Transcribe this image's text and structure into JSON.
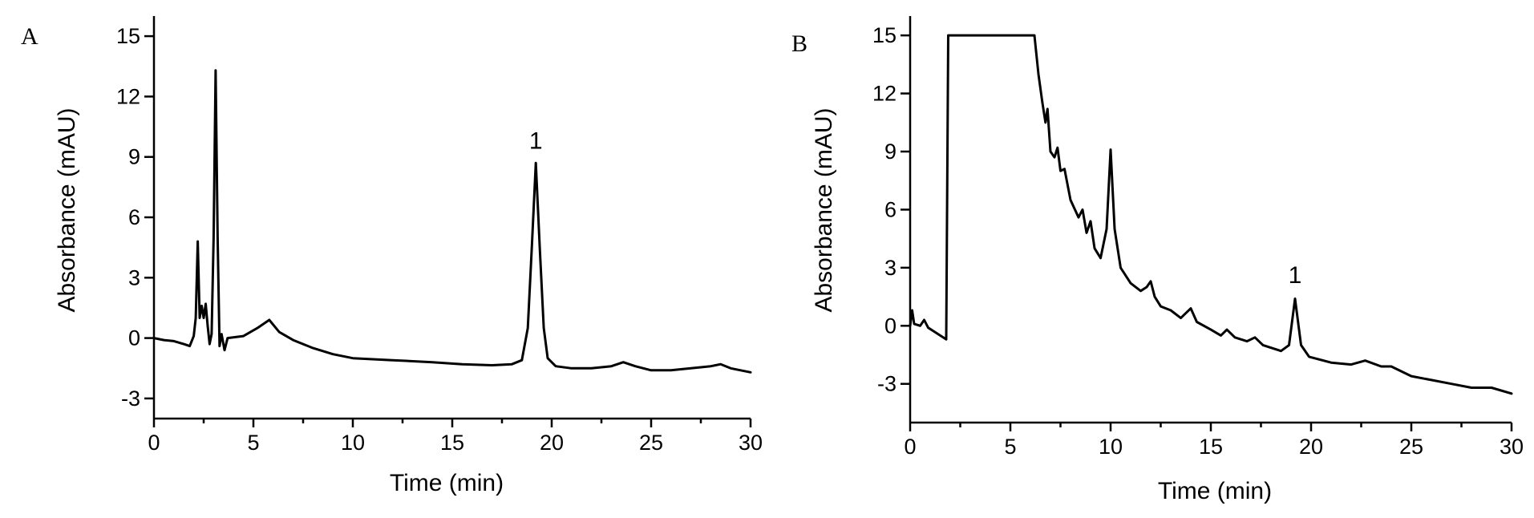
{
  "chart_data": [
    {
      "type": "line",
      "panel_label": "A",
      "title": "",
      "xlabel": "Time (min)",
      "ylabel": "Absorbance (mAU)",
      "xlim": [
        0,
        30
      ],
      "ylim": [
        -4,
        16
      ],
      "x_ticks": [
        0,
        5,
        10,
        15,
        20,
        25,
        30
      ],
      "x_tick_labels": [
        "0",
        "5",
        "10",
        "15",
        "20",
        "25",
        "30"
      ],
      "y_ticks": [
        -3,
        0,
        3,
        6,
        9,
        12,
        15
      ],
      "y_tick_labels": [
        "-3",
        "0",
        "3",
        "6",
        "9",
        "12",
        "15"
      ],
      "grid": false,
      "legend": "none",
      "annotations": [
        {
          "text": "1",
          "x": 19.2,
          "y": 9.4
        }
      ],
      "series": [
        {
          "color": "#000000",
          "points": [
            [
              0,
              0
            ],
            [
              0.5,
              -0.1
            ],
            [
              1.0,
              -0.15
            ],
            [
              1.5,
              -0.3
            ],
            [
              1.8,
              -0.4
            ],
            [
              2.0,
              0.1
            ],
            [
              2.1,
              1.0
            ],
            [
              2.2,
              4.8
            ],
            [
              2.3,
              1.0
            ],
            [
              2.4,
              1.6
            ],
            [
              2.5,
              1.0
            ],
            [
              2.6,
              1.7
            ],
            [
              2.7,
              0.6
            ],
            [
              2.8,
              -0.3
            ],
            [
              2.9,
              0.2
            ],
            [
              3.0,
              5.0
            ],
            [
              3.1,
              13.3
            ],
            [
              3.2,
              5.0
            ],
            [
              3.3,
              -0.4
            ],
            [
              3.4,
              0.2
            ],
            [
              3.55,
              -0.6
            ],
            [
              3.7,
              0.0
            ],
            [
              4.5,
              0.1
            ],
            [
              5.2,
              0.5
            ],
            [
              5.8,
              0.9
            ],
            [
              6.3,
              0.3
            ],
            [
              7.0,
              -0.1
            ],
            [
              8.0,
              -0.5
            ],
            [
              9.0,
              -0.8
            ],
            [
              10.0,
              -1.0
            ],
            [
              12.0,
              -1.1
            ],
            [
              14.0,
              -1.2
            ],
            [
              15.5,
              -1.3
            ],
            [
              17.0,
              -1.35
            ],
            [
              18.0,
              -1.3
            ],
            [
              18.5,
              -1.1
            ],
            [
              18.8,
              0.5
            ],
            [
              19.0,
              4.5
            ],
            [
              19.2,
              8.7
            ],
            [
              19.4,
              4.5
            ],
            [
              19.6,
              0.5
            ],
            [
              19.8,
              -1.0
            ],
            [
              20.2,
              -1.4
            ],
            [
              21.0,
              -1.5
            ],
            [
              22.0,
              -1.5
            ],
            [
              23.0,
              -1.4
            ],
            [
              23.6,
              -1.2
            ],
            [
              24.2,
              -1.4
            ],
            [
              25.0,
              -1.6
            ],
            [
              26.0,
              -1.6
            ],
            [
              27.0,
              -1.5
            ],
            [
              28.0,
              -1.4
            ],
            [
              28.5,
              -1.3
            ],
            [
              29.0,
              -1.5
            ],
            [
              30.0,
              -1.7
            ]
          ]
        }
      ]
    },
    {
      "type": "line",
      "panel_label": "B",
      "title": "",
      "xlabel": "Time (min)",
      "ylabel": "Absorbance (mAU)",
      "xlim": [
        0,
        30
      ],
      "ylim": [
        -5,
        16
      ],
      "x_ticks": [
        0,
        5,
        10,
        15,
        20,
        25,
        30
      ],
      "x_tick_labels": [
        "0",
        "5",
        "10",
        "15",
        "20",
        "25",
        "30"
      ],
      "y_ticks": [
        -3,
        0,
        3,
        6,
        9,
        12,
        15
      ],
      "y_tick_labels": [
        "-3",
        "0",
        "3",
        "6",
        "9",
        "12",
        "15"
      ],
      "grid": false,
      "legend": "none",
      "annotations": [
        {
          "text": "1",
          "x": 19.2,
          "y": 2.2
        }
      ],
      "series": [
        {
          "color": "#000000",
          "points": [
            [
              0,
              0
            ],
            [
              0.1,
              0.8
            ],
            [
              0.2,
              0.1
            ],
            [
              0.5,
              0.0
            ],
            [
              0.7,
              0.3
            ],
            [
              0.9,
              -0.1
            ],
            [
              1.2,
              -0.3
            ],
            [
              1.5,
              -0.5
            ],
            [
              1.8,
              -0.7
            ],
            [
              1.9,
              15.0
            ],
            [
              6.2,
              15.0
            ],
            [
              6.4,
              13.0
            ],
            [
              6.6,
              11.5
            ],
            [
              6.75,
              10.5
            ],
            [
              6.85,
              11.2
            ],
            [
              7.0,
              9.0
            ],
            [
              7.2,
              8.7
            ],
            [
              7.35,
              9.2
            ],
            [
              7.5,
              8.0
            ],
            [
              7.7,
              8.1
            ],
            [
              8.0,
              6.5
            ],
            [
              8.4,
              5.6
            ],
            [
              8.6,
              6.0
            ],
            [
              8.8,
              4.8
            ],
            [
              9.0,
              5.4
            ],
            [
              9.2,
              4.0
            ],
            [
              9.5,
              3.5
            ],
            [
              9.8,
              5.0
            ],
            [
              10.0,
              9.1
            ],
            [
              10.2,
              5.0
            ],
            [
              10.5,
              3.0
            ],
            [
              11.0,
              2.2
            ],
            [
              11.5,
              1.8
            ],
            [
              11.8,
              2.0
            ],
            [
              12.0,
              2.3
            ],
            [
              12.2,
              1.5
            ],
            [
              12.5,
              1.0
            ],
            [
              13.0,
              0.8
            ],
            [
              13.5,
              0.4
            ],
            [
              14.0,
              0.9
            ],
            [
              14.3,
              0.2
            ],
            [
              15.0,
              -0.2
            ],
            [
              15.5,
              -0.5
            ],
            [
              15.8,
              -0.2
            ],
            [
              16.2,
              -0.6
            ],
            [
              16.8,
              -0.8
            ],
            [
              17.2,
              -0.6
            ],
            [
              17.6,
              -1.0
            ],
            [
              18.5,
              -1.3
            ],
            [
              18.9,
              -1.0
            ],
            [
              19.2,
              1.4
            ],
            [
              19.5,
              -1.0
            ],
            [
              19.9,
              -1.6
            ],
            [
              21.0,
              -1.9
            ],
            [
              22.0,
              -2.0
            ],
            [
              22.7,
              -1.8
            ],
            [
              23.5,
              -2.1
            ],
            [
              24.0,
              -2.1
            ],
            [
              25.0,
              -2.6
            ],
            [
              26.0,
              -2.8
            ],
            [
              27.0,
              -3.0
            ],
            [
              28.0,
              -3.2
            ],
            [
              29.0,
              -3.2
            ],
            [
              30.0,
              -3.5
            ]
          ]
        }
      ]
    }
  ]
}
